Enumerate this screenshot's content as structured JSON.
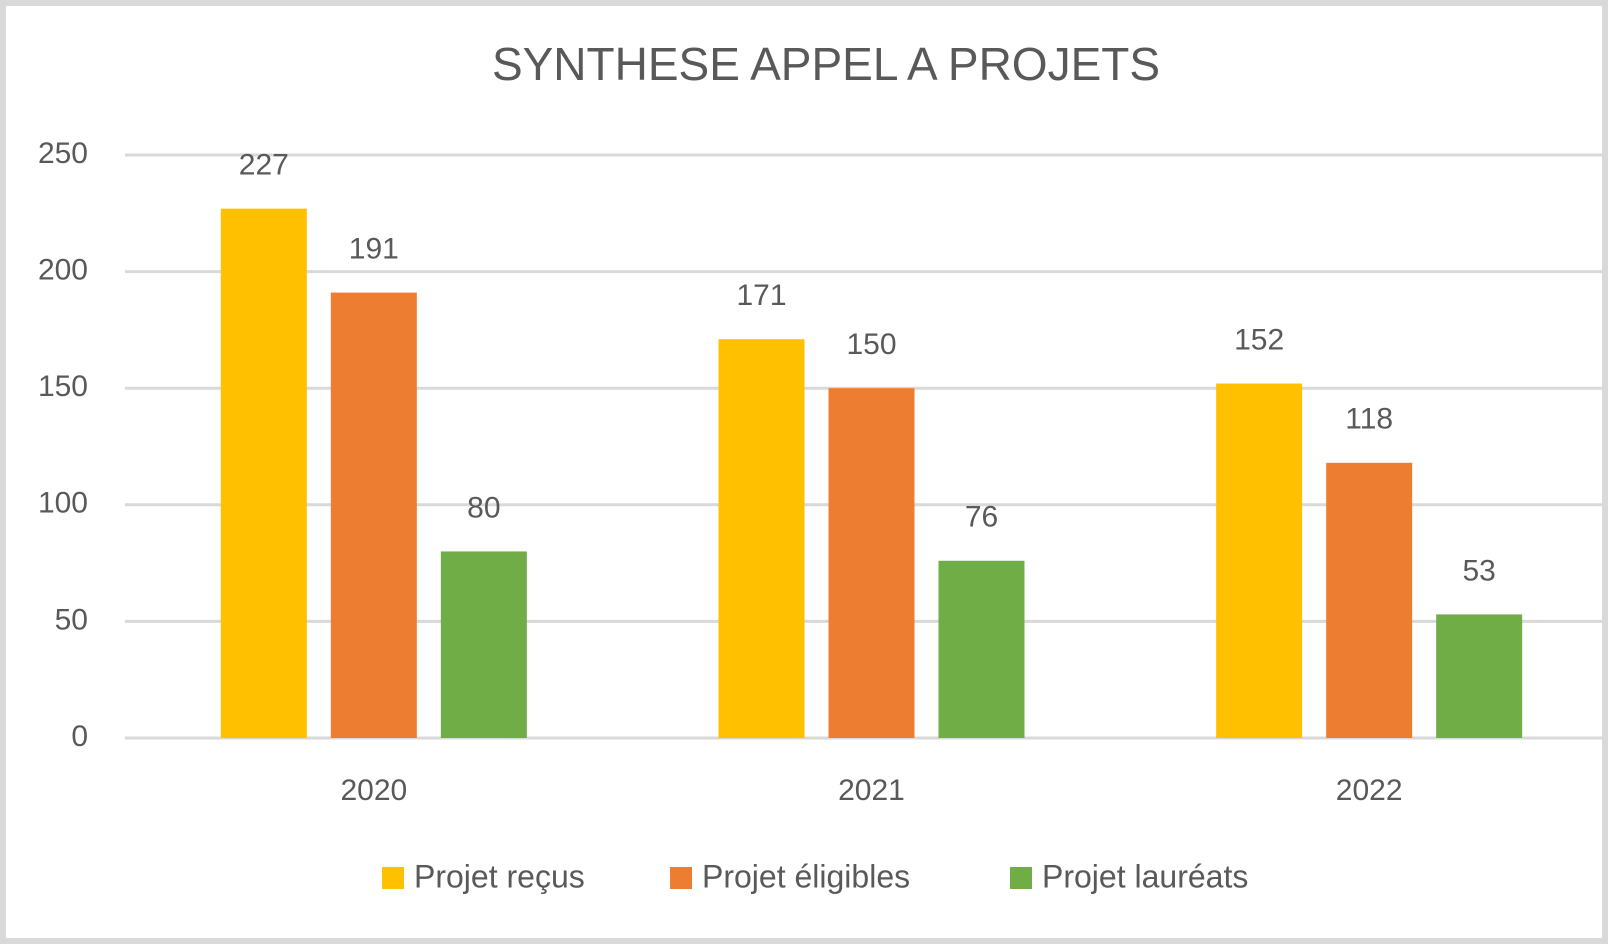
{
  "chart_data": {
    "type": "bar",
    "title": "SYNTHESE APPEL A PROJETS",
    "categories": [
      "2020",
      "2021",
      "2022"
    ],
    "series": [
      {
        "name": "Projet reçus",
        "color": "#ffc000",
        "values": [
          227,
          171,
          152
        ]
      },
      {
        "name": "Projet éligibles",
        "color": "#ed7d31",
        "values": [
          191,
          150,
          118
        ]
      },
      {
        "name": "Projet lauréats",
        "color": "#70ad47",
        "values": [
          80,
          76,
          53
        ]
      }
    ],
    "ylim": [
      0,
      250
    ],
    "yticks": [
      0,
      50,
      100,
      150,
      200,
      250
    ],
    "grid": true,
    "legend": "bottom"
  }
}
